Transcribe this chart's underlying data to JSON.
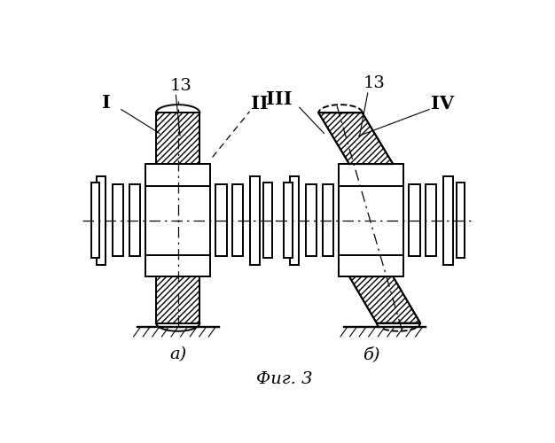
{
  "bg_color": "#ffffff",
  "lw": 1.4,
  "lw_thin": 0.8,
  "fig_label": "Фиг. 3",
  "sub_a": "а)",
  "sub_b": "б)"
}
